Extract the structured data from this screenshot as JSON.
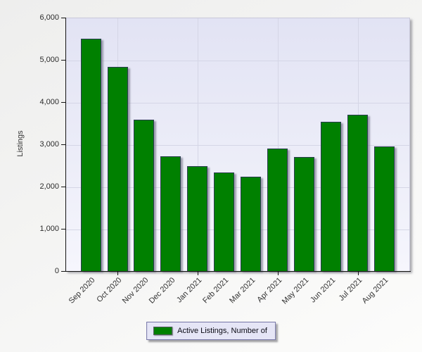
{
  "chart_data": {
    "type": "bar",
    "title": "",
    "categories": [
      "Sep 2020",
      "Oct 2020",
      "Nov 2020",
      "Dec 2020",
      "Jan 2021",
      "Feb 2021",
      "Mar 2021",
      "Apr 2021",
      "May 2021",
      "Jun 2021",
      "Jul 2021",
      "Aug 2021"
    ],
    "values": [
      5480,
      4820,
      3570,
      2700,
      2470,
      2320,
      2210,
      2880,
      2680,
      3520,
      3680,
      2930
    ],
    "series_name": "Active Listings, Number of",
    "xlabel": "",
    "ylabel": "Listings",
    "ylim": [
      0,
      6000
    ],
    "y_tick_values": [
      6000,
      5000,
      4000,
      3000,
      2000,
      1000,
      0
    ],
    "y_tick_labels": [
      "6,000",
      "5,000",
      "4,000",
      "3,000",
      "2,000",
      "1,000",
      "0"
    ],
    "x_major_tick_indices": [
      1,
      4,
      7,
      10
    ],
    "grid": true,
    "legend_position": "bottom",
    "bar_color": "#008000"
  },
  "legend": {
    "label": "Active Listings, Number of",
    "swatch_color": "#008000"
  },
  "colors": {
    "bar_fill": "#008000",
    "bar_border": "#2c3c52",
    "plot_bg_top": "#e2e3f4",
    "plot_bg_bottom": "#f6f6fd",
    "gridline": "#d5d6e6",
    "axis": "#141414",
    "legend_bg": "#e5e5f6",
    "legend_border": "#7575a5"
  }
}
